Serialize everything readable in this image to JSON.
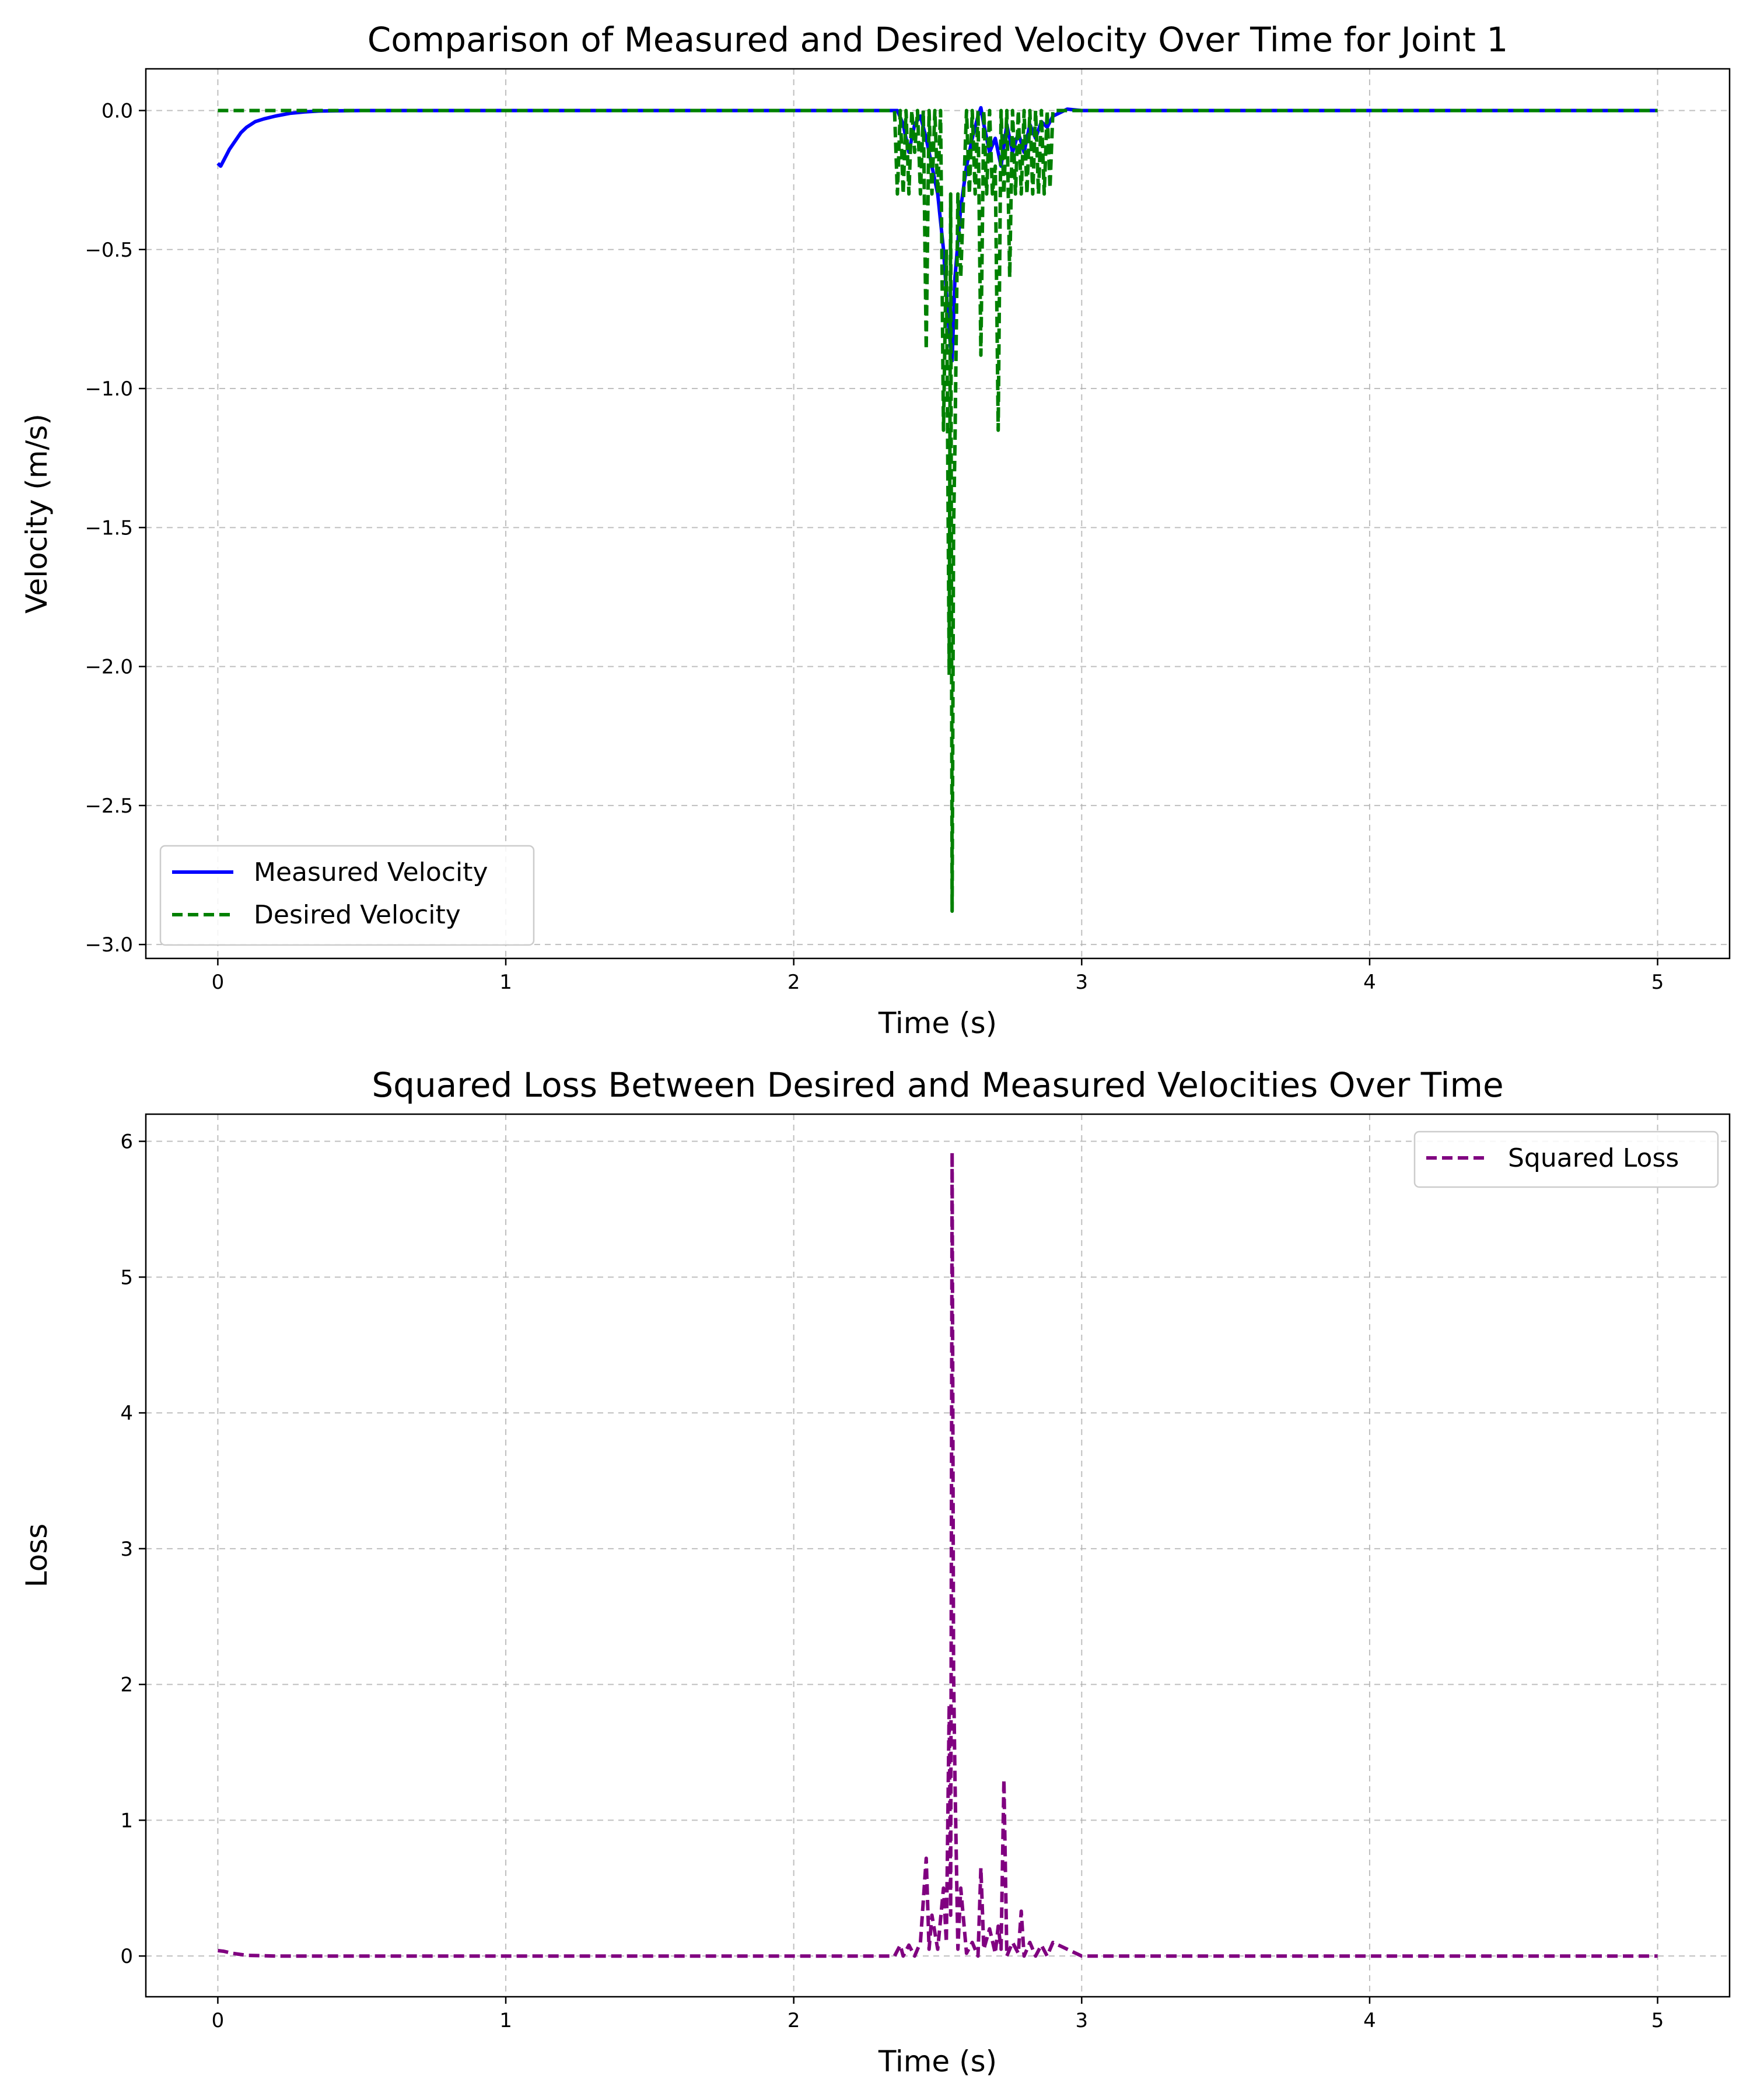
{
  "chart_data": [
    {
      "type": "line",
      "title": "Comparison of Measured and Desired Velocity Over Time for Joint 1",
      "xlabel": "Time (s)",
      "ylabel": "Velocity (m/s)",
      "xlim": [
        -0.25,
        5.25
      ],
      "ylim": [
        -3.05,
        0.15
      ],
      "xticks": [
        0,
        1,
        2,
        3,
        4,
        5
      ],
      "xtick_labels": [
        "0",
        "1",
        "2",
        "3",
        "4",
        "5"
      ],
      "yticks": [
        0.0,
        -0.5,
        -1.0,
        -1.5,
        -2.0,
        -2.5,
        -3.0
      ],
      "ytick_labels": [
        "0.0",
        "−0.5",
        "−1.0",
        "−1.5",
        "−2.0",
        "−2.5",
        "−3.0"
      ],
      "grid": true,
      "legend_position": "lower-left",
      "series": [
        {
          "name": "Measured Velocity",
          "color": "#0000ff",
          "style": "solid",
          "x": [
            0,
            0.01,
            0.02,
            0.04,
            0.06,
            0.08,
            0.1,
            0.13,
            0.16,
            0.2,
            0.25,
            0.3,
            0.35,
            0.4,
            0.5,
            1.0,
            2.0,
            2.36,
            2.38,
            2.4,
            2.42,
            2.44,
            2.46,
            2.48,
            2.5,
            2.52,
            2.54,
            2.55,
            2.56,
            2.58,
            2.6,
            2.62,
            2.64,
            2.65,
            2.66,
            2.68,
            2.7,
            2.72,
            2.74,
            2.76,
            2.78,
            2.8,
            2.82,
            2.84,
            2.86,
            2.88,
            2.9,
            2.95,
            3.0,
            4.0,
            5.0
          ],
          "y": [
            -0.19,
            -0.2,
            -0.18,
            -0.14,
            -0.11,
            -0.08,
            -0.06,
            -0.04,
            -0.03,
            -0.02,
            -0.01,
            -0.005,
            -0.002,
            -0.001,
            0,
            0,
            0,
            0,
            -0.05,
            -0.15,
            -0.05,
            -0.02,
            -0.1,
            -0.2,
            -0.3,
            -0.5,
            -0.8,
            -0.9,
            -0.6,
            -0.35,
            -0.2,
            -0.1,
            -0.02,
            0.01,
            -0.05,
            -0.15,
            -0.1,
            -0.2,
            -0.05,
            -0.15,
            -0.08,
            -0.15,
            -0.05,
            -0.1,
            -0.04,
            -0.06,
            -0.02,
            0.005,
            0,
            0,
            0
          ]
        },
        {
          "name": "Desired Velocity",
          "color": "#008000",
          "style": "dashed",
          "x": [
            0,
            2.35,
            2.36,
            2.37,
            2.38,
            2.39,
            2.4,
            2.41,
            2.42,
            2.43,
            2.44,
            2.45,
            2.46,
            2.47,
            2.48,
            2.49,
            2.5,
            2.51,
            2.52,
            2.53,
            2.54,
            2.545,
            2.55,
            2.555,
            2.56,
            2.57,
            2.58,
            2.59,
            2.6,
            2.61,
            2.62,
            2.63,
            2.64,
            2.65,
            2.66,
            2.67,
            2.68,
            2.69,
            2.7,
            2.71,
            2.72,
            2.73,
            2.74,
            2.75,
            2.76,
            2.77,
            2.78,
            2.79,
            2.8,
            2.81,
            2.82,
            2.83,
            2.84,
            2.85,
            2.86,
            2.87,
            2.88,
            2.89,
            2.9,
            3.0,
            5.0
          ],
          "y": [
            0,
            0,
            -0.3,
            0,
            -0.3,
            0,
            -0.3,
            0,
            -0.15,
            0,
            -0.3,
            0,
            -0.86,
            0,
            -0.3,
            0,
            -0.3,
            0,
            -1.15,
            -0.5,
            -2.03,
            -0.3,
            -2.88,
            -1.5,
            -1.2,
            -0.3,
            -0.6,
            -0.3,
            0,
            -0.3,
            0,
            -0.3,
            0,
            -0.88,
            0,
            -0.3,
            0,
            -0.3,
            -0.2,
            -1.15,
            0,
            -0.3,
            0,
            -0.6,
            0,
            -0.3,
            0,
            -0.3,
            0,
            -0.3,
            0,
            -0.3,
            0,
            -0.3,
            0,
            -0.3,
            0,
            -0.28,
            0,
            0,
            0
          ]
        }
      ]
    },
    {
      "type": "line",
      "title": "Squared Loss Between Desired and Measured Velocities Over Time",
      "xlabel": "Time (s)",
      "ylabel": "Loss",
      "xlim": [
        -0.25,
        5.25
      ],
      "ylim": [
        -0.3,
        6.2
      ],
      "xticks": [
        0,
        1,
        2,
        3,
        4,
        5
      ],
      "xtick_labels": [
        "0",
        "1",
        "2",
        "3",
        "4",
        "5"
      ],
      "yticks": [
        0,
        1,
        2,
        3,
        4,
        5,
        6
      ],
      "ytick_labels": [
        "0",
        "1",
        "2",
        "3",
        "4",
        "5",
        "6"
      ],
      "grid": true,
      "legend_position": "upper-right",
      "series": [
        {
          "name": "Squared Loss",
          "color": "#800080",
          "style": "dashed",
          "x": [
            0,
            0.02,
            0.05,
            0.1,
            0.2,
            2.35,
            2.37,
            2.38,
            2.4,
            2.42,
            2.44,
            2.46,
            2.47,
            2.48,
            2.5,
            2.52,
            2.53,
            2.54,
            2.545,
            2.55,
            2.555,
            2.56,
            2.57,
            2.58,
            2.6,
            2.62,
            2.64,
            2.65,
            2.66,
            2.68,
            2.7,
            2.71,
            2.72,
            2.73,
            2.74,
            2.76,
            2.78,
            2.79,
            2.8,
            2.82,
            2.84,
            2.86,
            2.88,
            2.9,
            3.0,
            5.0
          ],
          "y": [
            0.04,
            0.035,
            0.02,
            0.005,
            0,
            0,
            0.08,
            0,
            0.08,
            0,
            0.1,
            0.72,
            0.05,
            0.3,
            0.05,
            0.5,
            0.1,
            1.85,
            0.3,
            5.92,
            2.1,
            1.3,
            0.05,
            0.5,
            0.02,
            0.1,
            0,
            0.65,
            0.05,
            0.2,
            0.02,
            0.22,
            0.05,
            1.3,
            0,
            0.1,
            0.02,
            0.33,
            0,
            0.1,
            0,
            0.08,
            0,
            0.1,
            0,
            0
          ]
        }
      ]
    }
  ]
}
